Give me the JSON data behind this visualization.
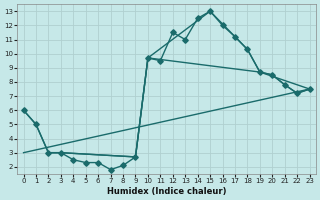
{
  "xlabel": "Humidex (Indice chaleur)",
  "xlim": [
    -0.5,
    23.5
  ],
  "ylim": [
    1.5,
    13.5
  ],
  "xticks": [
    0,
    1,
    2,
    3,
    4,
    5,
    6,
    7,
    8,
    9,
    10,
    11,
    12,
    13,
    14,
    15,
    16,
    17,
    18,
    19,
    20,
    21,
    22,
    23
  ],
  "yticks": [
    2,
    3,
    4,
    5,
    6,
    7,
    8,
    9,
    10,
    11,
    12,
    13
  ],
  "bg_color": "#c6e8e8",
  "line_color": "#1a6b6b",
  "grid_color": "#b0d0d0",
  "line1_x": [
    0,
    1,
    2,
    3,
    4,
    5,
    6,
    7,
    8,
    9,
    10,
    11,
    12,
    13,
    14,
    15,
    16,
    17,
    18,
    19,
    20,
    21,
    22,
    23
  ],
  "line1_y": [
    6.0,
    5.0,
    3.0,
    3.0,
    2.5,
    2.3,
    2.3,
    1.8,
    2.1,
    2.7,
    9.7,
    9.5,
    11.5,
    11.0,
    12.5,
    13.0,
    12.0,
    11.2,
    10.3,
    8.7,
    8.5,
    7.8,
    7.2,
    7.5
  ],
  "line2_x": [
    0,
    1,
    2,
    3,
    9,
    10,
    15,
    18,
    19,
    20,
    21,
    22,
    23
  ],
  "line2_y": [
    6.0,
    5.0,
    3.0,
    3.0,
    2.7,
    9.7,
    13.0,
    10.3,
    8.7,
    8.5,
    7.8,
    7.2,
    7.5
  ],
  "line3_x": [
    0,
    23
  ],
  "line3_y": [
    3.0,
    7.5
  ],
  "line4_x": [
    2,
    3,
    9,
    10,
    19,
    23
  ],
  "line4_y": [
    3.0,
    3.0,
    2.7,
    9.7,
    8.7,
    7.5
  ],
  "markersize": 2.8,
  "linewidth": 1.0
}
